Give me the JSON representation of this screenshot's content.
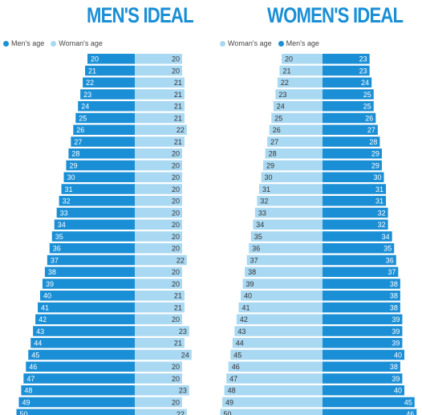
{
  "colors": {
    "mens_age": "#1a8fd6",
    "womans_age": "#a9d8f2",
    "title": "#1a8fd6"
  },
  "chart_data": [
    {
      "type": "bar",
      "orientation": "horizontal-diverging",
      "title": "MEN'S IDEAL",
      "legend": [
        "Men's age",
        "Woman's age"
      ],
      "series": [
        {
          "name": "Men's age",
          "values": [
            20,
            21,
            22,
            23,
            24,
            25,
            26,
            27,
            28,
            29,
            30,
            31,
            32,
            33,
            34,
            35,
            36,
            37,
            38,
            39,
            40,
            41,
            42,
            43,
            44,
            45,
            46,
            47,
            48,
            49,
            50
          ]
        },
        {
          "name": "Woman's age",
          "values": [
            20,
            20,
            21,
            21,
            21,
            21,
            22,
            21,
            20,
            20,
            20,
            20,
            20,
            20,
            20,
            20,
            20,
            22,
            20,
            20,
            21,
            21,
            20,
            23,
            21,
            24,
            20,
            20,
            23,
            20,
            22
          ]
        }
      ]
    },
    {
      "type": "bar",
      "orientation": "horizontal-diverging",
      "title": "WOMEN'S IDEAL",
      "legend": [
        "Woman's age",
        "Men's age"
      ],
      "series": [
        {
          "name": "Woman's age",
          "values": [
            20,
            21,
            22,
            23,
            24,
            25,
            26,
            27,
            28,
            29,
            30,
            31,
            32,
            33,
            34,
            35,
            36,
            37,
            38,
            39,
            40,
            41,
            42,
            43,
            44,
            45,
            46,
            47,
            48,
            49,
            50
          ]
        },
        {
          "name": "Men's age",
          "values": [
            23,
            23,
            24,
            25,
            25,
            26,
            27,
            28,
            29,
            29,
            30,
            31,
            31,
            32,
            32,
            34,
            35,
            36,
            37,
            38,
            38,
            38,
            39,
            39,
            39,
            40,
            38,
            39,
            40,
            45,
            46
          ]
        }
      ]
    }
  ]
}
